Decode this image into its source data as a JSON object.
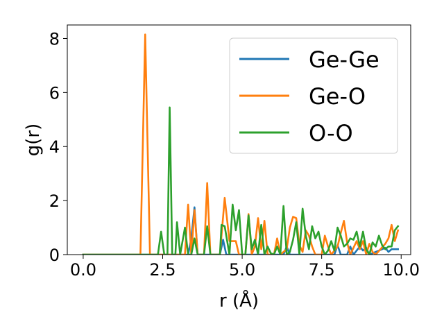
{
  "chart_data": {
    "type": "line",
    "title": "",
    "xlabel": "r (Å)",
    "ylabel": "g(r)",
    "xlim": [
      -0.5,
      10.3
    ],
    "ylim": [
      0,
      8.5
    ],
    "xticks": [
      0.0,
      2.5,
      5.0,
      7.5,
      10.0
    ],
    "xtick_labels": [
      "0.0",
      "2.5",
      "5.0",
      "7.5",
      "10.0"
    ],
    "yticks": [
      0,
      2,
      4,
      6,
      8
    ],
    "ytick_labels": [
      "0",
      "2",
      "4",
      "6",
      "8"
    ],
    "grid": false,
    "legend_position": "top-right",
    "series": [
      {
        "name": "Ge-Ge",
        "color": "#1f77b4",
        "points": [
          [
            0.0,
            0
          ],
          [
            3.3,
            0
          ],
          [
            3.4,
            0.6
          ],
          [
            3.5,
            1.75
          ],
          [
            3.6,
            0
          ],
          [
            4.3,
            0
          ],
          [
            4.4,
            0.55
          ],
          [
            4.5,
            0
          ],
          [
            6.3,
            0
          ],
          [
            6.4,
            0.3
          ],
          [
            6.5,
            0
          ],
          [
            7.9,
            0
          ],
          [
            8.0,
            0.35
          ],
          [
            8.1,
            0
          ],
          [
            8.3,
            0
          ],
          [
            8.4,
            0.3
          ],
          [
            8.5,
            0
          ],
          [
            8.7,
            0.3
          ],
          [
            8.8,
            0.15
          ],
          [
            8.9,
            0.25
          ],
          [
            9.0,
            0
          ],
          [
            9.3,
            0.15
          ],
          [
            9.5,
            0.25
          ],
          [
            9.6,
            0.1
          ],
          [
            9.7,
            0.2
          ],
          [
            9.9,
            0.2
          ]
        ]
      },
      {
        "name": "Ge-O",
        "color": "#ff7f0e",
        "points": [
          [
            0.0,
            0
          ],
          [
            1.8,
            0
          ],
          [
            1.95,
            8.15
          ],
          [
            2.1,
            0
          ],
          [
            3.2,
            0
          ],
          [
            3.3,
            1.85
          ],
          [
            3.4,
            0
          ],
          [
            3.5,
            1.65
          ],
          [
            3.6,
            0
          ],
          [
            3.8,
            0
          ],
          [
            3.9,
            2.65
          ],
          [
            4.0,
            0
          ],
          [
            4.3,
            0
          ],
          [
            4.45,
            2.1
          ],
          [
            4.6,
            0.5
          ],
          [
            4.8,
            0.5
          ],
          [
            4.9,
            0
          ],
          [
            5.1,
            0
          ],
          [
            5.2,
            1.5
          ],
          [
            5.3,
            0
          ],
          [
            5.4,
            0.3
          ],
          [
            5.5,
            1.35
          ],
          [
            5.6,
            0.2
          ],
          [
            5.7,
            1.25
          ],
          [
            5.8,
            0
          ],
          [
            6.0,
            0
          ],
          [
            6.1,
            0.6
          ],
          [
            6.2,
            0
          ],
          [
            6.4,
            0.2
          ],
          [
            6.5,
            1.0
          ],
          [
            6.6,
            1.4
          ],
          [
            6.7,
            1.35
          ],
          [
            6.8,
            0.35
          ],
          [
            6.9,
            0.1
          ],
          [
            7.0,
            0.9
          ],
          [
            7.1,
            0.7
          ],
          [
            7.2,
            0.3
          ],
          [
            7.3,
            0
          ],
          [
            7.5,
            0
          ],
          [
            7.6,
            0.7
          ],
          [
            7.7,
            0.3
          ],
          [
            7.8,
            0
          ],
          [
            8.0,
            0.3
          ],
          [
            8.1,
            0.8
          ],
          [
            8.2,
            1.25
          ],
          [
            8.3,
            0.45
          ],
          [
            8.4,
            0
          ],
          [
            8.6,
            0.5
          ],
          [
            8.7,
            0.2
          ],
          [
            8.8,
            0.5
          ],
          [
            8.9,
            0
          ],
          [
            9.0,
            0.4
          ],
          [
            9.1,
            0.1
          ],
          [
            9.2,
            0
          ],
          [
            9.5,
            0.4
          ],
          [
            9.6,
            0.6
          ],
          [
            9.7,
            1.1
          ],
          [
            9.8,
            0.5
          ],
          [
            9.9,
            0.9
          ]
        ]
      },
      {
        "name": "O-O",
        "color": "#2ca02c",
        "points": [
          [
            0.0,
            0
          ],
          [
            2.35,
            0
          ],
          [
            2.45,
            0.85
          ],
          [
            2.55,
            0
          ],
          [
            2.65,
            0
          ],
          [
            2.72,
            5.45
          ],
          [
            2.8,
            0
          ],
          [
            2.9,
            0
          ],
          [
            2.95,
            1.2
          ],
          [
            3.05,
            0
          ],
          [
            3.2,
            1.0
          ],
          [
            3.3,
            0
          ],
          [
            3.4,
            0
          ],
          [
            3.5,
            0.6
          ],
          [
            3.6,
            0
          ],
          [
            3.8,
            0
          ],
          [
            3.9,
            1.05
          ],
          [
            4.0,
            0
          ],
          [
            4.3,
            0
          ],
          [
            4.35,
            1.1
          ],
          [
            4.45,
            1.05
          ],
          [
            4.6,
            0
          ],
          [
            4.7,
            1.85
          ],
          [
            4.8,
            0.9
          ],
          [
            4.9,
            1.65
          ],
          [
            5.0,
            0
          ],
          [
            5.1,
            0
          ],
          [
            5.2,
            1.45
          ],
          [
            5.3,
            0.2
          ],
          [
            5.4,
            0.55
          ],
          [
            5.5,
            0
          ],
          [
            5.6,
            1.1
          ],
          [
            5.7,
            0
          ],
          [
            5.8,
            0.3
          ],
          [
            5.9,
            0.05
          ],
          [
            6.0,
            0
          ],
          [
            6.1,
            0.3
          ],
          [
            6.2,
            0
          ],
          [
            6.3,
            1.8
          ],
          [
            6.4,
            0
          ],
          [
            6.5,
            0.1
          ],
          [
            6.6,
            0.55
          ],
          [
            6.7,
            1.2
          ],
          [
            6.8,
            0
          ],
          [
            6.9,
            1.7
          ],
          [
            7.0,
            0.7
          ],
          [
            7.1,
            0.2
          ],
          [
            7.2,
            1.05
          ],
          [
            7.3,
            0.6
          ],
          [
            7.4,
            0.85
          ],
          [
            7.5,
            0.3
          ],
          [
            7.6,
            0
          ],
          [
            7.7,
            0.15
          ],
          [
            7.8,
            0.5
          ],
          [
            7.9,
            0.15
          ],
          [
            8.0,
            1.0
          ],
          [
            8.1,
            0.7
          ],
          [
            8.2,
            0.3
          ],
          [
            8.3,
            0.4
          ],
          [
            8.4,
            0.6
          ],
          [
            8.5,
            0.55
          ],
          [
            8.6,
            0.85
          ],
          [
            8.7,
            0.3
          ],
          [
            8.8,
            0.85
          ],
          [
            8.9,
            0.2
          ],
          [
            9.0,
            0
          ],
          [
            9.1,
            0.45
          ],
          [
            9.2,
            0.3
          ],
          [
            9.3,
            0.7
          ],
          [
            9.4,
            0.35
          ],
          [
            9.5,
            0.2
          ],
          [
            9.6,
            0.3
          ],
          [
            9.7,
            0.3
          ],
          [
            9.8,
            0.9
          ],
          [
            9.9,
            1.05
          ]
        ]
      }
    ]
  }
}
